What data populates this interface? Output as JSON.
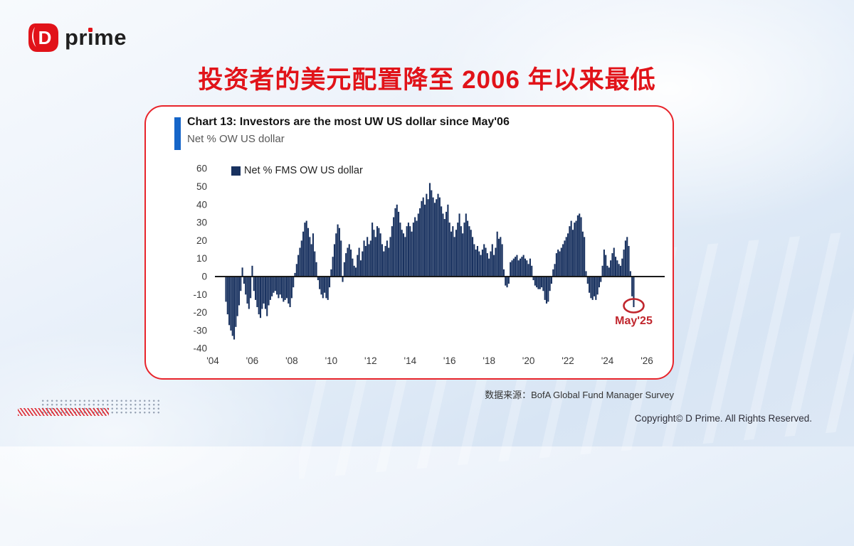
{
  "brand": {
    "mark_letter": "D",
    "word_pre": "pr",
    "word_i": "ı",
    "word_post": "me"
  },
  "headline": "投资者的美元配置降至 2006 年以来最低",
  "card": {
    "chart_header": {
      "title": "Chart 13: Investors are the most UW US dollar since May'06",
      "subtitle": "Net % OW US dollar"
    },
    "legend_label": "Net % FMS OW US dollar"
  },
  "source_note": "数据来源：BofA Global Fund Manager Survey",
  "copyright": "Copyright© D Prime. All Rights Reserved.",
  "colors": {
    "brand_red": "#e11319",
    "card_border": "#e8242b",
    "accent_blue": "#1565c8",
    "bar": "#18315f",
    "annotation": "#c0262d",
    "axis_text": "#3a3a3a",
    "zero_line": "#1a1a1a"
  },
  "chart_data": {
    "type": "bar",
    "title": "Chart 13: Investors are the most UW US dollar since May'06",
    "ylabel": "Net % OW US dollar",
    "legend": [
      "Net % FMS OW US dollar"
    ],
    "legend_position": "top-left",
    "grid": false,
    "ylim": [
      -40,
      60
    ],
    "yticks": [
      60,
      50,
      40,
      30,
      20,
      10,
      0,
      -10,
      -20,
      -30,
      -40
    ],
    "xticks": [
      "'04",
      "'06",
      "'08",
      "'10",
      "'12",
      "'14",
      "'16",
      "'18",
      "'20",
      "'22",
      "'24",
      "'26"
    ],
    "x_start": "2004-09",
    "frequency": "monthly",
    "values": [
      -14,
      -21,
      -27,
      -30,
      -33,
      -35,
      -28,
      -22,
      -16,
      -8,
      5,
      -4,
      -10,
      -15,
      -18,
      -12,
      6,
      -8,
      -13,
      -17,
      -21,
      -23,
      -18,
      -15,
      -18,
      -22,
      -16,
      -13,
      -11,
      -9,
      -8,
      -10,
      -12,
      -10,
      -12,
      -14,
      -13,
      -12,
      -15,
      -17,
      -12,
      -6,
      2,
      7,
      12,
      16,
      20,
      25,
      30,
      31,
      27,
      22,
      18,
      24,
      14,
      8,
      -2,
      -7,
      -10,
      -12,
      -9,
      -12,
      -13,
      -6,
      4,
      11,
      18,
      24,
      29,
      27,
      20,
      -3,
      8,
      13,
      16,
      18,
      15,
      10,
      6,
      5,
      12,
      16,
      9,
      14,
      20,
      17,
      22,
      18,
      20,
      30,
      26,
      22,
      28,
      27,
      24,
      18,
      14,
      17,
      20,
      16,
      22,
      28,
      33,
      38,
      40,
      36,
      30,
      26,
      24,
      22,
      28,
      30,
      28,
      25,
      30,
      33,
      31,
      35,
      38,
      42,
      44,
      40,
      46,
      43,
      52,
      48,
      44,
      41,
      43,
      46,
      44,
      39,
      35,
      32,
      36,
      40,
      30,
      25,
      28,
      22,
      26,
      30,
      35,
      28,
      24,
      30,
      35,
      31,
      28,
      26,
      22,
      18,
      15,
      17,
      14,
      12,
      15,
      18,
      16,
      13,
      10,
      14,
      18,
      12,
      16,
      25,
      21,
      22,
      18,
      4,
      -5,
      -6,
      -4,
      8,
      9,
      10,
      11,
      12,
      9,
      10,
      11,
      12,
      10,
      9,
      7,
      10,
      6,
      -2,
      -5,
      -6,
      -7,
      -7,
      -6,
      -8,
      -13,
      -15,
      -14,
      -8,
      -4,
      4,
      7,
      13,
      15,
      14,
      16,
      18,
      20,
      22,
      24,
      28,
      31,
      26,
      30,
      31,
      34,
      35,
      33,
      25,
      22,
      3,
      -4,
      -9,
      -12,
      -13,
      -11,
      -13,
      -10,
      -6,
      -3,
      6,
      15,
      12,
      6,
      5,
      9,
      13,
      16,
      11,
      9,
      7,
      6,
      10,
      15,
      20,
      22,
      17,
      3,
      -11,
      -17
    ],
    "annotation": {
      "label": "May'25",
      "value": -17,
      "points_to": "last-bar"
    }
  }
}
